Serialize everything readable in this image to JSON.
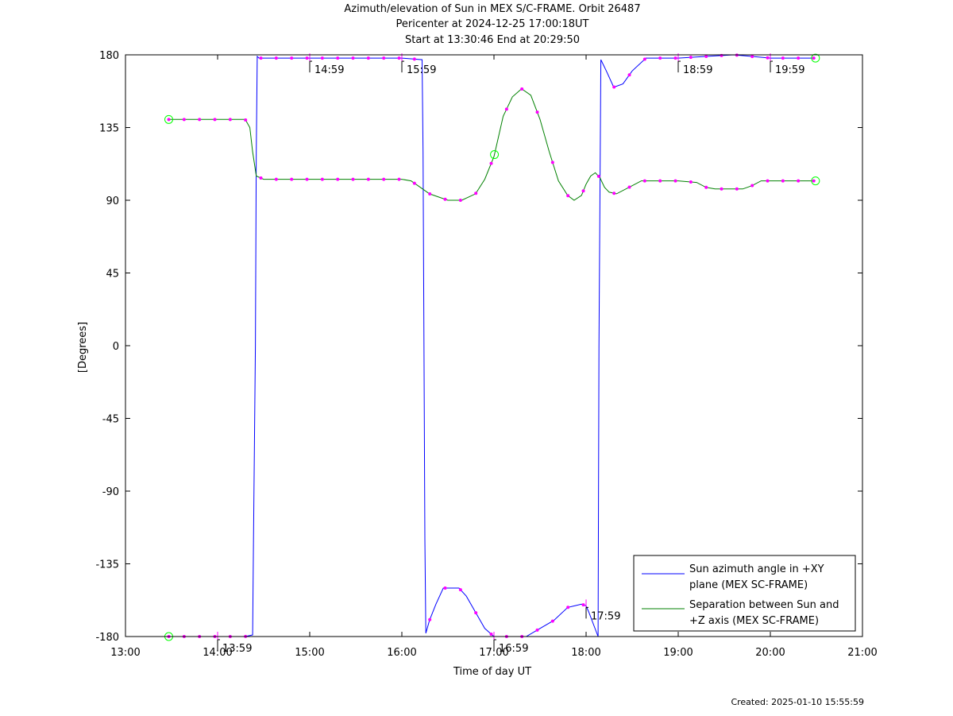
{
  "header": {
    "title": "Azimuth/elevation of Sun in MEX S/C-FRAME.  Orbit 26487",
    "subtitle": "Pericenter at 2024-12-25 17:00:18UT",
    "range": "Start at 13:30:46 End at 20:29:50"
  },
  "footer": {
    "created": "Created: 2025-01-10 15:55:59"
  },
  "chart_data": {
    "type": "line",
    "xlabel": "Time of day UT",
    "ylabel": "[Degrees]",
    "xlim": [
      13.0,
      21.0
    ],
    "ylim": [
      -180,
      180
    ],
    "x_ticks": [
      13,
      14,
      15,
      16,
      17,
      18,
      19,
      20,
      21
    ],
    "x_tick_labels": [
      "13:00",
      "14:00",
      "15:00",
      "16:00",
      "17:00",
      "18:00",
      "19:00",
      "20:00",
      "21:00"
    ],
    "y_ticks": [
      180,
      135,
      90,
      45,
      0,
      -45,
      -90,
      -135,
      -180
    ],
    "y_tick_labels": [
      "180",
      "135",
      "90",
      "45",
      "0",
      "-45",
      "-90",
      "-135",
      "-180"
    ],
    "legend_position": "bottom-right",
    "colors": {
      "azimuth": "#0000ff",
      "separation": "#008000",
      "markers": "#ff00ff",
      "endpoints": "#00ff00"
    },
    "series": [
      {
        "name": "Sun azimuth angle in +XY plane (MEX SC-FRAME)",
        "x": [
          13.47,
          14.0,
          14.3,
          14.38,
          14.39,
          14.41,
          14.42,
          14.43,
          14.45,
          14.6,
          15.0,
          15.5,
          16.0,
          16.22,
          16.23,
          16.25,
          16.26,
          16.3,
          16.37,
          16.45,
          16.5,
          16.62,
          16.7,
          16.8,
          16.9,
          17.0,
          17.2,
          17.35,
          17.5,
          17.65,
          17.8,
          17.95,
          18.0,
          18.03,
          18.13,
          18.14,
          18.16,
          18.22,
          18.3,
          18.4,
          18.5,
          18.65,
          19.0,
          19.3,
          19.6,
          19.8,
          20.0,
          20.3,
          20.49
        ],
        "y": [
          -180,
          -180,
          -180,
          -179,
          -120,
          0,
          120,
          179,
          178,
          178,
          178,
          178,
          178,
          177,
          120,
          -120,
          -178,
          -170,
          -160,
          -150,
          -150,
          -150,
          -155,
          -165,
          -175,
          -180,
          -180,
          -180,
          -175,
          -170,
          -162,
          -160,
          -161,
          -165,
          -180,
          0,
          177,
          170,
          160,
          162,
          170,
          178,
          178,
          179,
          180,
          179,
          178,
          178,
          178
        ]
      },
      {
        "name": "Separation between Sun and +Z axis (MEX SC-FRAME)",
        "x": [
          13.47,
          14.0,
          14.3,
          14.35,
          14.38,
          14.42,
          14.5,
          15.0,
          15.5,
          16.0,
          16.1,
          16.2,
          16.3,
          16.5,
          16.65,
          16.8,
          16.9,
          17.0,
          17.1,
          17.2,
          17.3,
          17.4,
          17.5,
          17.6,
          17.7,
          17.8,
          17.87,
          17.95,
          18.0,
          18.05,
          18.1,
          18.15,
          18.2,
          18.25,
          18.33,
          18.5,
          18.6,
          19.0,
          19.2,
          19.3,
          19.4,
          19.7,
          19.8,
          19.9,
          20.0,
          20.49
        ],
        "y": [
          140,
          140,
          140,
          135,
          120,
          105,
          103,
          103,
          103,
          103,
          102,
          98,
          94,
          90,
          90,
          94,
          103,
          117,
          142,
          154,
          159,
          155,
          140,
          120,
          102,
          93,
          90,
          93,
          100,
          105,
          107,
          104,
          98,
          95,
          94,
          99,
          102,
          102,
          101,
          98,
          97,
          97,
          99,
          102,
          102,
          102
        ]
      }
    ],
    "time_labels": [
      {
        "x": 14.0,
        "y": -180,
        "text": "13:59"
      },
      {
        "x": 15.0,
        "y": 178,
        "text": "14:59"
      },
      {
        "x": 16.0,
        "y": 178,
        "text": "15:59"
      },
      {
        "x": 17.0,
        "y": -180,
        "text": "16:59"
      },
      {
        "x": 18.0,
        "y": -160,
        "text": "17:59"
      },
      {
        "x": 19.0,
        "y": 178,
        "text": "18:59"
      },
      {
        "x": 20.0,
        "y": 178,
        "text": "19:59"
      }
    ],
    "legend": [
      {
        "line1": "Sun azimuth angle in +XY",
        "line2": "plane (MEX SC-FRAME)"
      },
      {
        "line1": "Separation between Sun and",
        "line2": "+Z axis (MEX SC-FRAME)"
      }
    ]
  }
}
